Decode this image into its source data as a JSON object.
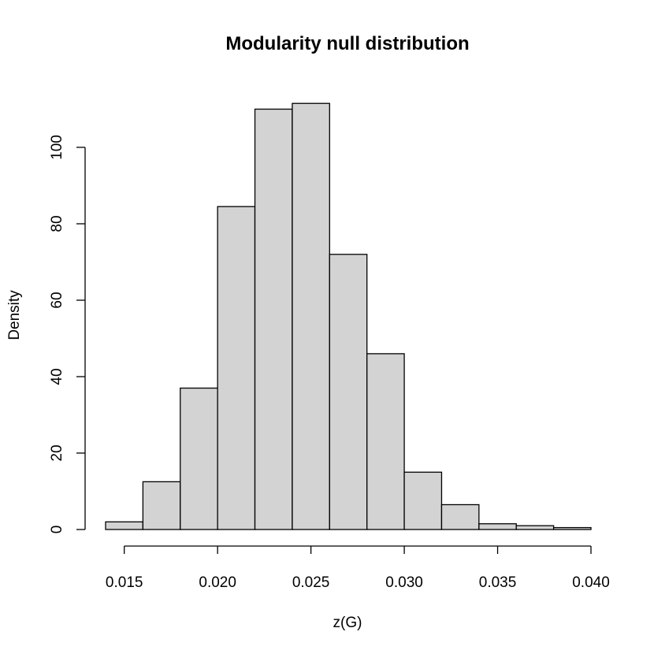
{
  "chart_data": {
    "type": "bar",
    "title": "Modularity null distribution",
    "xlabel": "z(G)",
    "ylabel": "Density",
    "bin_edges": [
      0.014,
      0.016,
      0.018,
      0.02,
      0.022,
      0.024,
      0.026,
      0.028,
      0.03,
      0.032,
      0.034,
      0.036,
      0.038,
      0.04
    ],
    "values": [
      2,
      12.5,
      37,
      84.5,
      110,
      111.5,
      72,
      46,
      15,
      6.5,
      1.5,
      1,
      0.5
    ],
    "xlim": [
      0.014,
      0.04
    ],
    "ylim": [
      0,
      115
    ],
    "xticks": [
      0.015,
      0.02,
      0.025,
      0.03,
      0.035,
      0.04
    ],
    "xtick_labels": [
      "0.015",
      "0.020",
      "0.025",
      "0.030",
      "0.035",
      "0.040"
    ],
    "yticks": [
      0,
      20,
      40,
      60,
      80,
      100
    ],
    "ytick_labels": [
      "0",
      "20",
      "40",
      "60",
      "80",
      "100"
    ],
    "bar_color": "#d3d3d3",
    "edge_color": "#000000",
    "grid": false,
    "legend": "none"
  }
}
